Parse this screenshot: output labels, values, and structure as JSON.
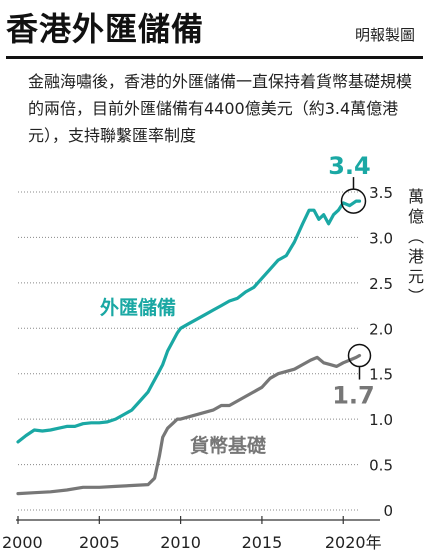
{
  "header": {
    "title": "香港外匯儲備",
    "credit": "明報製圖"
  },
  "description": "金融海嘯後，香港的外匯儲備一直保持着貨幣基礎規模的兩倍，目前外匯儲備有4400億美元（約3.4萬億港元），支持聯繫匯率制度",
  "colors": {
    "reserves": "#1aa8a4",
    "base": "#777777",
    "grid": "#888888"
  },
  "chart_data": {
    "type": "line",
    "title": "香港外匯儲備",
    "xlabel": "年",
    "ylabel": "萬億（港元）",
    "ylabel_chars": [
      "萬",
      "億",
      "︵",
      "港",
      "元",
      "︶"
    ],
    "xlim": [
      2000,
      2021.4
    ],
    "ylim": [
      0,
      3.5
    ],
    "x_ticks": [
      2000,
      2005,
      2010,
      2015,
      2020
    ],
    "x_tick_labels": [
      "2000",
      "2005",
      "2010",
      "2015",
      "2020年"
    ],
    "y_ticks": [
      0,
      0.5,
      1.0,
      1.5,
      2.0,
      2.5,
      3.0,
      3.5
    ],
    "y_tick_labels": [
      "0",
      "0.5",
      "1.0",
      "1.5",
      "2.0",
      "2.5",
      "3.0",
      "3.5"
    ],
    "grid": true,
    "series": [
      {
        "name": "外匯儲備",
        "end_label": "3.4",
        "x": [
          2000.0,
          2000.5,
          2001.0,
          2001.5,
          2002.0,
          2002.5,
          2003.0,
          2003.5,
          2004.0,
          2004.5,
          2005.0,
          2005.5,
          2006.0,
          2006.5,
          2007.0,
          2007.5,
          2008.0,
          2008.3,
          2008.6,
          2008.9,
          2009.2,
          2009.5,
          2009.8,
          2010.0,
          2010.5,
          2011.0,
          2011.5,
          2012.0,
          2012.5,
          2013.0,
          2013.5,
          2014.0,
          2014.5,
          2015.0,
          2015.5,
          2016.0,
          2016.5,
          2017.0,
          2017.5,
          2017.9,
          2018.2,
          2018.5,
          2018.8,
          2019.1,
          2019.4,
          2019.7,
          2020.0,
          2020.4,
          2020.8,
          2021.0
        ],
        "values": [
          0.75,
          0.82,
          0.88,
          0.87,
          0.88,
          0.9,
          0.92,
          0.92,
          0.95,
          0.96,
          0.96,
          0.97,
          1.0,
          1.05,
          1.1,
          1.2,
          1.3,
          1.4,
          1.5,
          1.6,
          1.75,
          1.85,
          1.95,
          2.0,
          2.05,
          2.1,
          2.15,
          2.2,
          2.25,
          2.3,
          2.33,
          2.4,
          2.45,
          2.55,
          2.65,
          2.75,
          2.8,
          2.95,
          3.15,
          3.3,
          3.3,
          3.2,
          3.25,
          3.15,
          3.25,
          3.3,
          3.38,
          3.35,
          3.4,
          3.4
        ]
      },
      {
        "name": "貨幣基礎",
        "end_label": "1.7",
        "x": [
          2000.0,
          2001.0,
          2002.0,
          2003.0,
          2004.0,
          2005.0,
          2006.0,
          2007.0,
          2008.0,
          2008.4,
          2008.7,
          2008.9,
          2009.2,
          2009.5,
          2009.8,
          2010.0,
          2011.0,
          2012.0,
          2012.5,
          2013.0,
          2014.0,
          2015.0,
          2015.5,
          2016.0,
          2017.0,
          2017.5,
          2018.0,
          2018.4,
          2018.8,
          2019.2,
          2019.6,
          2020.0,
          2020.4,
          2020.8,
          2021.0
        ],
        "values": [
          0.18,
          0.19,
          0.2,
          0.22,
          0.25,
          0.25,
          0.26,
          0.27,
          0.28,
          0.35,
          0.6,
          0.8,
          0.9,
          0.95,
          1.0,
          1.0,
          1.05,
          1.1,
          1.15,
          1.15,
          1.25,
          1.35,
          1.45,
          1.5,
          1.55,
          1.6,
          1.65,
          1.68,
          1.62,
          1.6,
          1.58,
          1.62,
          1.65,
          1.68,
          1.7
        ]
      }
    ]
  }
}
